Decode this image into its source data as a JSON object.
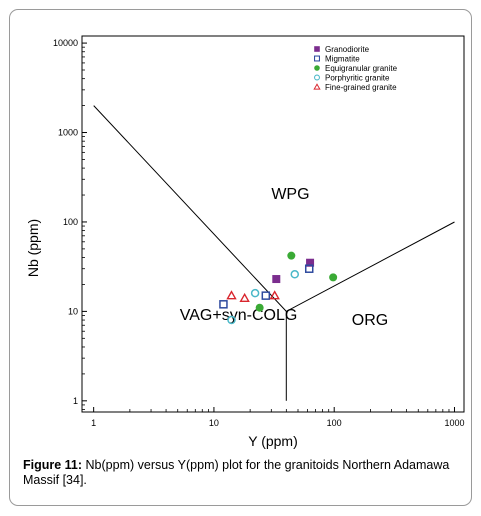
{
  "caption": {
    "label": "Figure 11:",
    "text": " Nb(ppm) versus Y(ppm) plot for the granitoids Northern Adamawa Massif [34]."
  },
  "chart_data": {
    "type": "scatter",
    "xlabel": "Y (ppm)",
    "ylabel": "Nb (ppm)",
    "x_scale": "log",
    "y_scale": "log",
    "xlim": [
      0.8,
      1200
    ],
    "ylim": [
      0.75,
      12000
    ],
    "x_ticks": [
      1,
      10,
      100,
      1000
    ],
    "x_tick_labels": [
      "1",
      "10",
      "100",
      "1000"
    ],
    "y_ticks": [
      1,
      10,
      100,
      1000,
      10000
    ],
    "y_tick_labels": [
      "1",
      "10",
      "100",
      "1000",
      "10000"
    ],
    "legend_position": "top-right",
    "field_labels": [
      {
        "text": "WPG",
        "x": 30,
        "y": 180
      },
      {
        "text": "VAG+syn-COLG",
        "x": 5.2,
        "y": 8
      },
      {
        "text": "ORG",
        "x": 140,
        "y": 7
      }
    ],
    "boundaries": [
      [
        [
          1,
          2000
        ],
        [
          40,
          10
        ],
        [
          1000,
          100
        ]
      ],
      [
        [
          40,
          10
        ],
        [
          40,
          1
        ]
      ]
    ],
    "series": [
      {
        "name": "Granodiorite",
        "marker": "filled-square",
        "color": "#7b2d8e",
        "points": [
          [
            33,
            23
          ],
          [
            63,
            35
          ]
        ]
      },
      {
        "name": "Migmatite",
        "marker": "open-square",
        "color": "#2e4a9e",
        "points": [
          [
            12,
            12
          ],
          [
            27,
            15
          ],
          [
            62,
            30
          ]
        ]
      },
      {
        "name": "Equigranular granite",
        "marker": "filled-circle",
        "color": "#3aaa35",
        "points": [
          [
            24,
            11
          ],
          [
            44,
            42
          ],
          [
            98,
            24
          ]
        ]
      },
      {
        "name": "Porphyritic  granite",
        "marker": "open-circle",
        "color": "#4ab8c8",
        "points": [
          [
            14,
            8
          ],
          [
            22,
            16
          ],
          [
            47,
            26
          ]
        ]
      },
      {
        "name": "Fine-grained granite",
        "marker": "open-triangle",
        "color": "#d9262e",
        "points": [
          [
            14,
            15
          ],
          [
            18,
            14
          ],
          [
            32,
            15
          ]
        ]
      }
    ]
  }
}
